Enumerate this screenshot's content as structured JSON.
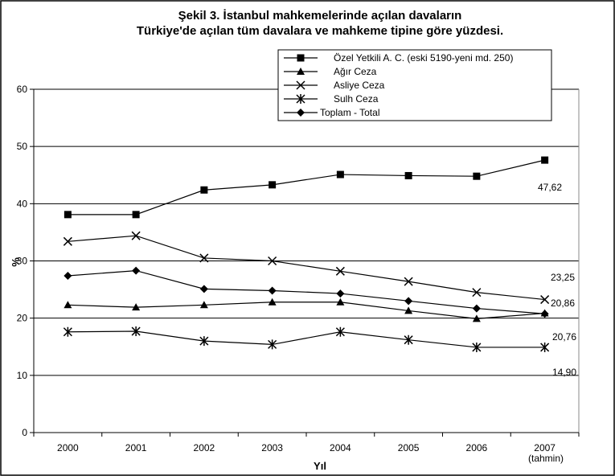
{
  "chart_data": {
    "type": "line",
    "title_lines": [
      "Şekil 3. İstanbul mahkemelerinde açılan davaların",
      "Türkiye'de açılan tüm davalara ve mahkeme tipine göre yüzdesi."
    ],
    "xlabel": "Yıl",
    "ylabel": "%",
    "categories": [
      "2000",
      "2001",
      "2002",
      "2003",
      "2004",
      "2005",
      "2006",
      "2007"
    ],
    "x_sublabel": "(tahmin)",
    "ylim": [
      0,
      60
    ],
    "yticks": [
      0,
      10,
      20,
      30,
      40,
      50,
      60
    ],
    "grid": true,
    "legend_position": "top-right",
    "series": [
      {
        "name": "Özel Yetkili A. C. (eski 5190-yeni md. 250)",
        "marker": "square",
        "values": [
          38.1,
          38.1,
          42.4,
          43.3,
          45.1,
          44.9,
          44.8,
          47.62
        ]
      },
      {
        "name": "Ağır Ceza",
        "marker": "triangle",
        "values": [
          22.3,
          21.9,
          22.3,
          22.8,
          22.8,
          21.3,
          19.9,
          20.86
        ]
      },
      {
        "name": "Asliye Ceza",
        "marker": "x",
        "values": [
          33.4,
          34.4,
          30.5,
          30.0,
          28.2,
          26.4,
          24.5,
          23.25
        ]
      },
      {
        "name": "Sulh Ceza",
        "marker": "asterisk",
        "values": [
          17.6,
          17.7,
          16.0,
          15.4,
          17.6,
          16.2,
          14.9,
          14.9
        ]
      },
      {
        "name": "Toplam - Total",
        "marker": "diamond",
        "values": [
          27.4,
          28.3,
          25.1,
          24.8,
          24.3,
          23.0,
          21.7,
          20.76
        ]
      }
    ],
    "annotations": [
      "47,62",
      "23,25",
      "20,86",
      "20,76",
      "14,90"
    ]
  }
}
